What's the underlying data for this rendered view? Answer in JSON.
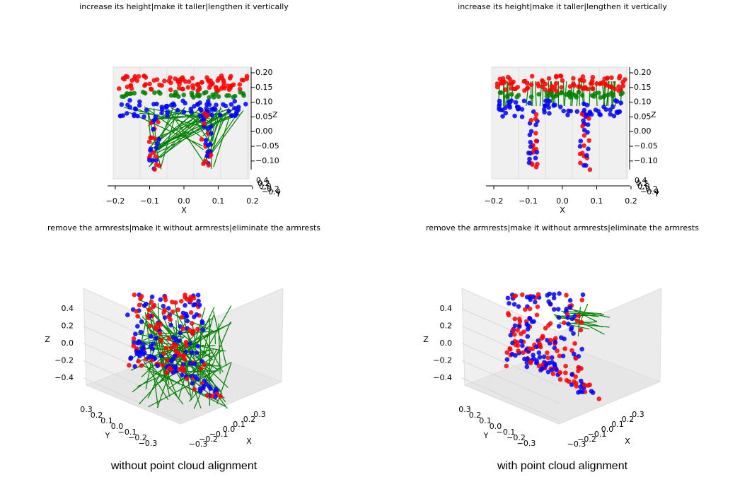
{
  "panels": [
    {
      "title": "increase its height|make it taller|lengthen it vertically",
      "x_label": "X",
      "y_label": "Y",
      "z_label": "Z",
      "x_ticks": [
        "−0.2",
        "−0.1",
        "0.0",
        "0.1",
        "0.2"
      ],
      "y_ticks": [
        "0.4",
        "0.2",
        "0.0",
        "−0.2",
        "−0.4"
      ],
      "z_ticks": [
        "0.20",
        "0.15",
        "0.10",
        "0.05",
        "0.00",
        "−0.05",
        "−0.10"
      ]
    },
    {
      "title": "increase its height|make it taller|lengthen it vertically",
      "x_label": "X",
      "y_label": "Y",
      "z_label": "Z",
      "x_ticks": [
        "−0.2",
        "−0.1",
        "0.0",
        "0.1",
        "0.2"
      ],
      "y_ticks": [
        "0.4",
        "0.2",
        "0.0",
        "−0.2",
        "−0.4"
      ],
      "z_ticks": [
        "0.20",
        "0.15",
        "0.10",
        "0.05",
        "0.00",
        "−0.05",
        "−0.10"
      ]
    },
    {
      "title": "remove the armrests|make it without armrests|eliminate the armrests",
      "x_label": "X",
      "y_label": "Y",
      "z_label": "Z",
      "x_ticks": [
        "−0.3",
        "−0.2",
        "−0.1",
        "0.0",
        "0.1",
        "0.2",
        "0.3"
      ],
      "y_ticks": [
        "0.3",
        "0.2",
        "0.1",
        "0.0",
        "−0.1",
        "−0.2",
        "−0.3"
      ],
      "z_ticks": [
        "0.4",
        "0.2",
        "0.0",
        "−0.2",
        "−0.4"
      ]
    },
    {
      "title": "remove the armrests|make it without armrests|eliminate the armrests",
      "x_label": "X",
      "y_label": "Y",
      "z_label": "Z",
      "x_ticks": [
        "−0.3",
        "−0.2",
        "−0.1",
        "0.0",
        "0.1",
        "0.2",
        "0.3"
      ],
      "y_ticks": [
        "0.3",
        "0.2",
        "0.1",
        "0.0",
        "−0.1",
        "−0.2",
        "−0.3"
      ],
      "z_ticks": [
        "0.4",
        "0.2",
        "0.0",
        "−0.2",
        "−0.4"
      ]
    }
  ],
  "captions": [
    "without point cloud alignment",
    "with point cloud alignment"
  ]
}
